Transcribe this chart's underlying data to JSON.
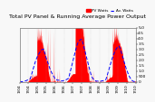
{
  "title": "Total PV Panel & Running Average Power Output",
  "background_color": "#f8f8f8",
  "plot_bg_color": "#f8f8f8",
  "grid_color": "#aaaaaa",
  "bar_color": "#ff0000",
  "avg_line_color": "#0000ff",
  "ylim": [
    0,
    5000
  ],
  "yticks_right": [
    0,
    500,
    1000,
    1500,
    2000,
    2500,
    3000,
    3500,
    4000,
    4500,
    5000
  ],
  "ytick_labels_right": [
    "0",
    "500",
    "1.0",
    "1.5",
    "2.0",
    "2.5",
    "3.0",
    "3.5",
    "4.0",
    "4.5",
    "5.0"
  ],
  "num_points": 700,
  "legend_pv_label": "PV Watts",
  "legend_avg_label": "Av. Watts",
  "title_fontsize": 4.5,
  "tick_fontsize": 3.2,
  "legend_fontsize": 3.0
}
